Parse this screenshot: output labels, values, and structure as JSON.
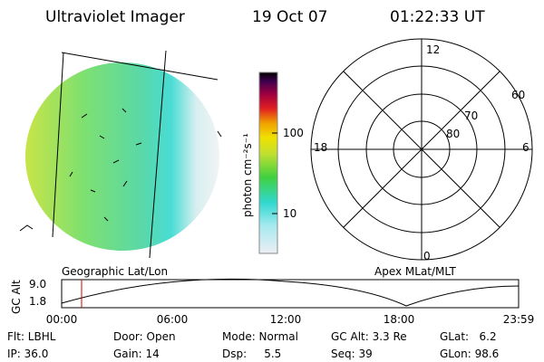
{
  "header": {
    "instrument": "Ultraviolet Imager",
    "date": "19 Oct 07",
    "time": "01:22:33 UT"
  },
  "colorbar": {
    "label": "photon cm⁻²s⁻¹",
    "ticks": [
      "100",
      "10"
    ]
  },
  "polar": {
    "labels": [
      "12",
      "18",
      "6",
      "0",
      "60",
      "70",
      "80"
    ]
  },
  "altitude_plot": {
    "left_title": "Geographic Lat/Lon",
    "right_title": "Apex MLat/MLT",
    "y_label": "GC Alt",
    "yticks": [
      "9.0",
      "1.8"
    ],
    "xticks": [
      "00:00",
      "06:00",
      "12:00",
      "18:00",
      "23:59"
    ]
  },
  "info": {
    "rows": [
      [
        "Flt: LBHL",
        "Door: Open",
        "Mode: Normal",
        "GC Alt: 3.3 Re",
        "GLat:   6.2"
      ],
      [
        "IP: 36.0",
        "Gain: 14",
        "Dsp:     5.5",
        "Seq: 39",
        "GLon: 98.6"
      ]
    ]
  }
}
